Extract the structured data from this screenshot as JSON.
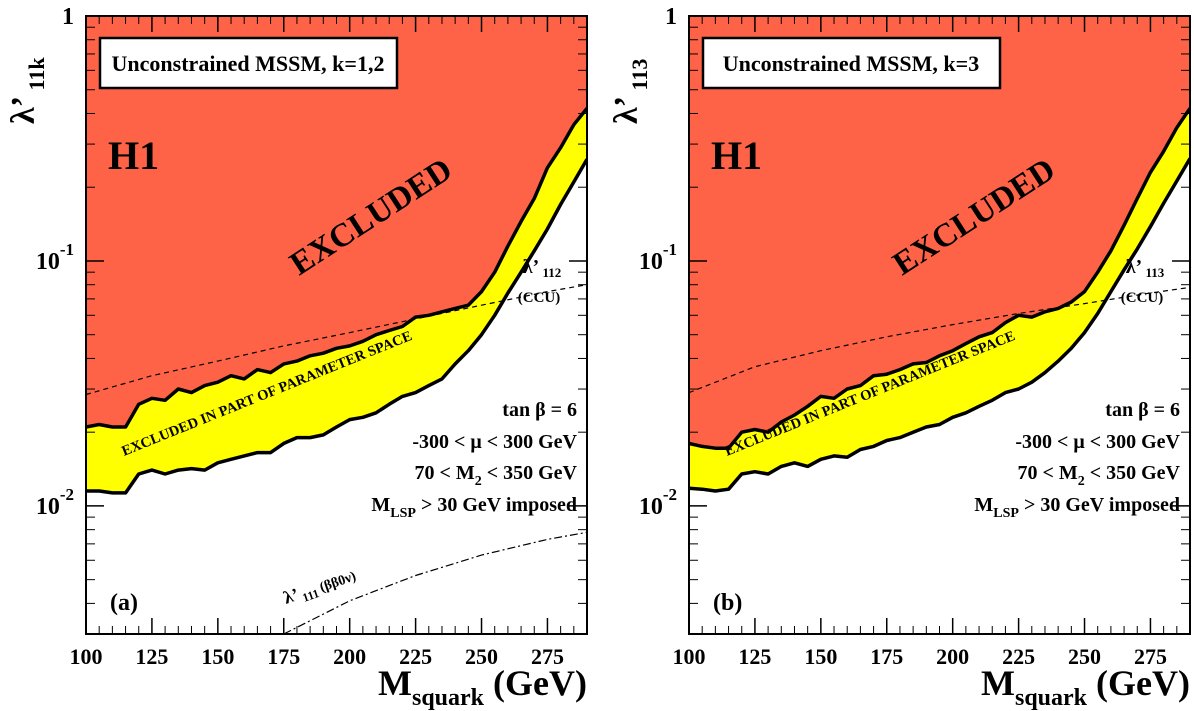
{
  "colors": {
    "excluded": "#ff6347",
    "partial": "#ffff00",
    "outline": "#000000",
    "background": "#ffffff"
  },
  "chart_data": [
    {
      "type": "area",
      "panel_label": "(a)",
      "title": "Unconstrained MSSM, k=1,2",
      "ylabel_main": "λ’",
      "ylabel_sub": "11k",
      "xlabel_main": "M",
      "xlabel_sub": "squark",
      "xlabel_unit": "(GeV)",
      "xlim": [
        100,
        290
      ],
      "ylim": [
        0.003,
        1
      ],
      "yscale": "log",
      "xticks": [
        100,
        125,
        150,
        175,
        200,
        225,
        250,
        275
      ],
      "yticks": [
        {
          "base": "1",
          "exp": "",
          "value": 1
        },
        {
          "base": "10",
          "exp": "-1",
          "value": 0.1
        },
        {
          "base": "10",
          "exp": "-2",
          "value": 0.01
        }
      ],
      "experiment_label": "H1",
      "excluded_label": "EXCLUDED",
      "partial_label": "EXCLUDED IN PART OF PARAMETER SPACE",
      "params": [
        "tan β = 6",
        "-300 < μ < 300 GeV",
        "70 < M₂ < 350 GeV",
        "M_LSP > 30 GeV imposed"
      ],
      "excluded_boundary": [
        {
          "x": 100,
          "y": 0.021
        },
        {
          "x": 105,
          "y": 0.0215
        },
        {
          "x": 110,
          "y": 0.021
        },
        {
          "x": 115,
          "y": 0.021
        },
        {
          "x": 120,
          "y": 0.026
        },
        {
          "x": 125,
          "y": 0.0275
        },
        {
          "x": 130,
          "y": 0.027
        },
        {
          "x": 135,
          "y": 0.03
        },
        {
          "x": 140,
          "y": 0.029
        },
        {
          "x": 145,
          "y": 0.031
        },
        {
          "x": 150,
          "y": 0.032
        },
        {
          "x": 155,
          "y": 0.034
        },
        {
          "x": 160,
          "y": 0.033
        },
        {
          "x": 165,
          "y": 0.036
        },
        {
          "x": 170,
          "y": 0.035
        },
        {
          "x": 175,
          "y": 0.038
        },
        {
          "x": 180,
          "y": 0.039
        },
        {
          "x": 185,
          "y": 0.041
        },
        {
          "x": 190,
          "y": 0.042
        },
        {
          "x": 195,
          "y": 0.044
        },
        {
          "x": 200,
          "y": 0.045
        },
        {
          "x": 205,
          "y": 0.047
        },
        {
          "x": 210,
          "y": 0.05
        },
        {
          "x": 215,
          "y": 0.052
        },
        {
          "x": 220,
          "y": 0.054
        },
        {
          "x": 225,
          "y": 0.059
        },
        {
          "x": 230,
          "y": 0.06
        },
        {
          "x": 235,
          "y": 0.062
        },
        {
          "x": 240,
          "y": 0.064
        },
        {
          "x": 245,
          "y": 0.066
        },
        {
          "x": 250,
          "y": 0.075
        },
        {
          "x": 255,
          "y": 0.09
        },
        {
          "x": 260,
          "y": 0.115
        },
        {
          "x": 265,
          "y": 0.145
        },
        {
          "x": 270,
          "y": 0.18
        },
        {
          "x": 275,
          "y": 0.24
        },
        {
          "x": 280,
          "y": 0.29
        },
        {
          "x": 285,
          "y": 0.36
        },
        {
          "x": 290,
          "y": 0.42
        }
      ],
      "partial_boundary": [
        {
          "x": 100,
          "y": 0.0115
        },
        {
          "x": 105,
          "y": 0.0115
        },
        {
          "x": 110,
          "y": 0.0113
        },
        {
          "x": 115,
          "y": 0.0113
        },
        {
          "x": 120,
          "y": 0.0135
        },
        {
          "x": 125,
          "y": 0.014
        },
        {
          "x": 130,
          "y": 0.0135
        },
        {
          "x": 135,
          "y": 0.014
        },
        {
          "x": 140,
          "y": 0.0142
        },
        {
          "x": 145,
          "y": 0.014
        },
        {
          "x": 150,
          "y": 0.015
        },
        {
          "x": 155,
          "y": 0.0155
        },
        {
          "x": 160,
          "y": 0.016
        },
        {
          "x": 165,
          "y": 0.0165
        },
        {
          "x": 170,
          "y": 0.0165
        },
        {
          "x": 175,
          "y": 0.018
        },
        {
          "x": 180,
          "y": 0.019
        },
        {
          "x": 185,
          "y": 0.019
        },
        {
          "x": 190,
          "y": 0.0195
        },
        {
          "x": 195,
          "y": 0.021
        },
        {
          "x": 200,
          "y": 0.0225
        },
        {
          "x": 205,
          "y": 0.023
        },
        {
          "x": 210,
          "y": 0.024
        },
        {
          "x": 215,
          "y": 0.026
        },
        {
          "x": 220,
          "y": 0.028
        },
        {
          "x": 225,
          "y": 0.029
        },
        {
          "x": 230,
          "y": 0.031
        },
        {
          "x": 235,
          "y": 0.033
        },
        {
          "x": 240,
          "y": 0.038
        },
        {
          "x": 245,
          "y": 0.043
        },
        {
          "x": 250,
          "y": 0.05
        },
        {
          "x": 255,
          "y": 0.06
        },
        {
          "x": 260,
          "y": 0.074
        },
        {
          "x": 265,
          "y": 0.09
        },
        {
          "x": 270,
          "y": 0.11
        },
        {
          "x": 275,
          "y": 0.135
        },
        {
          "x": 280,
          "y": 0.17
        },
        {
          "x": 285,
          "y": 0.21
        },
        {
          "x": 290,
          "y": 0.26
        }
      ],
      "ccu_curve": {
        "label_main": "λ’",
        "label_sub": "112",
        "label_extra": "(CCU)",
        "points": [
          {
            "x": 100,
            "y": 0.0285
          },
          {
            "x": 125,
            "y": 0.034
          },
          {
            "x": 150,
            "y": 0.039
          },
          {
            "x": 175,
            "y": 0.045
          },
          {
            "x": 200,
            "y": 0.051
          },
          {
            "x": 225,
            "y": 0.058
          },
          {
            "x": 250,
            "y": 0.066
          },
          {
            "x": 275,
            "y": 0.075
          },
          {
            "x": 290,
            "y": 0.08
          }
        ]
      },
      "bb0v_curve": {
        "label_main": "λ’",
        "label_sub": "111",
        "label_extra": "(ββ0ν)",
        "points": [
          {
            "x": 175,
            "y": 0.003
          },
          {
            "x": 200,
            "y": 0.0041
          },
          {
            "x": 225,
            "y": 0.0052
          },
          {
            "x": 250,
            "y": 0.0063
          },
          {
            "x": 275,
            "y": 0.0073
          },
          {
            "x": 290,
            "y": 0.0078
          }
        ]
      }
    },
    {
      "type": "area",
      "panel_label": "(b)",
      "title": "Unconstrained MSSM, k=3",
      "ylabel_main": "λ’",
      "ylabel_sub": "113",
      "xlabel_main": "M",
      "xlabel_sub": "squark",
      "xlabel_unit": "(GeV)",
      "xlim": [
        100,
        290
      ],
      "ylim": [
        0.003,
        1
      ],
      "yscale": "log",
      "xticks": [
        100,
        125,
        150,
        175,
        200,
        225,
        250,
        275
      ],
      "yticks": [
        {
          "base": "1",
          "exp": "",
          "value": 1
        },
        {
          "base": "10",
          "exp": "-1",
          "value": 0.1
        },
        {
          "base": "10",
          "exp": "-2",
          "value": 0.01
        }
      ],
      "experiment_label": "H1",
      "excluded_label": "EXCLUDED",
      "partial_label": "EXCLUDED IN PART OF PARAMETER SPACE",
      "params": [
        "tan β = 6",
        "-300 < μ < 300 GeV",
        "70 < M₂ < 350 GeV",
        "M_LSP > 30 GeV imposed"
      ],
      "excluded_boundary": [
        {
          "x": 100,
          "y": 0.018
        },
        {
          "x": 105,
          "y": 0.0175
        },
        {
          "x": 110,
          "y": 0.0172
        },
        {
          "x": 115,
          "y": 0.0172
        },
        {
          "x": 120,
          "y": 0.02
        },
        {
          "x": 125,
          "y": 0.0205
        },
        {
          "x": 130,
          "y": 0.02
        },
        {
          "x": 135,
          "y": 0.022
        },
        {
          "x": 140,
          "y": 0.0235
        },
        {
          "x": 145,
          "y": 0.0255
        },
        {
          "x": 150,
          "y": 0.028
        },
        {
          "x": 155,
          "y": 0.0275
        },
        {
          "x": 160,
          "y": 0.03
        },
        {
          "x": 165,
          "y": 0.031
        },
        {
          "x": 170,
          "y": 0.034
        },
        {
          "x": 175,
          "y": 0.0345
        },
        {
          "x": 180,
          "y": 0.036
        },
        {
          "x": 185,
          "y": 0.038
        },
        {
          "x": 190,
          "y": 0.0385
        },
        {
          "x": 195,
          "y": 0.041
        },
        {
          "x": 200,
          "y": 0.043
        },
        {
          "x": 205,
          "y": 0.046
        },
        {
          "x": 210,
          "y": 0.049
        },
        {
          "x": 215,
          "y": 0.051
        },
        {
          "x": 220,
          "y": 0.056
        },
        {
          "x": 225,
          "y": 0.06
        },
        {
          "x": 230,
          "y": 0.059
        },
        {
          "x": 235,
          "y": 0.062
        },
        {
          "x": 240,
          "y": 0.064
        },
        {
          "x": 245,
          "y": 0.068
        },
        {
          "x": 250,
          "y": 0.075
        },
        {
          "x": 255,
          "y": 0.09
        },
        {
          "x": 260,
          "y": 0.11
        },
        {
          "x": 265,
          "y": 0.14
        },
        {
          "x": 270,
          "y": 0.18
        },
        {
          "x": 275,
          "y": 0.23
        },
        {
          "x": 280,
          "y": 0.28
        },
        {
          "x": 285,
          "y": 0.35
        },
        {
          "x": 290,
          "y": 0.42
        }
      ],
      "partial_boundary": [
        {
          "x": 100,
          "y": 0.0118
        },
        {
          "x": 105,
          "y": 0.0117
        },
        {
          "x": 110,
          "y": 0.0115
        },
        {
          "x": 115,
          "y": 0.0117
        },
        {
          "x": 120,
          "y": 0.0135
        },
        {
          "x": 125,
          "y": 0.0138
        },
        {
          "x": 130,
          "y": 0.0135
        },
        {
          "x": 135,
          "y": 0.0145
        },
        {
          "x": 140,
          "y": 0.015
        },
        {
          "x": 145,
          "y": 0.0145
        },
        {
          "x": 150,
          "y": 0.0155
        },
        {
          "x": 155,
          "y": 0.016
        },
        {
          "x": 160,
          "y": 0.0158
        },
        {
          "x": 165,
          "y": 0.017
        },
        {
          "x": 170,
          "y": 0.0175
        },
        {
          "x": 175,
          "y": 0.0185
        },
        {
          "x": 180,
          "y": 0.019
        },
        {
          "x": 185,
          "y": 0.02
        },
        {
          "x": 190,
          "y": 0.021
        },
        {
          "x": 195,
          "y": 0.0215
        },
        {
          "x": 200,
          "y": 0.023
        },
        {
          "x": 205,
          "y": 0.024
        },
        {
          "x": 210,
          "y": 0.0255
        },
        {
          "x": 215,
          "y": 0.027
        },
        {
          "x": 220,
          "y": 0.029
        },
        {
          "x": 225,
          "y": 0.03
        },
        {
          "x": 230,
          "y": 0.032
        },
        {
          "x": 235,
          "y": 0.035
        },
        {
          "x": 240,
          "y": 0.039
        },
        {
          "x": 245,
          "y": 0.044
        },
        {
          "x": 250,
          "y": 0.051
        },
        {
          "x": 255,
          "y": 0.061
        },
        {
          "x": 260,
          "y": 0.075
        },
        {
          "x": 265,
          "y": 0.092
        },
        {
          "x": 270,
          "y": 0.112
        },
        {
          "x": 275,
          "y": 0.138
        },
        {
          "x": 280,
          "y": 0.172
        },
        {
          "x": 285,
          "y": 0.212
        },
        {
          "x": 290,
          "y": 0.262
        }
      ],
      "ccu_curve": {
        "label_main": "λ’",
        "label_sub": "113",
        "label_extra": "(CCU)",
        "points": [
          {
            "x": 100,
            "y": 0.029
          },
          {
            "x": 125,
            "y": 0.037
          },
          {
            "x": 150,
            "y": 0.043
          },
          {
            "x": 175,
            "y": 0.049
          },
          {
            "x": 200,
            "y": 0.055
          },
          {
            "x": 225,
            "y": 0.061
          },
          {
            "x": 250,
            "y": 0.067
          },
          {
            "x": 275,
            "y": 0.074
          },
          {
            "x": 290,
            "y": 0.078
          }
        ]
      }
    }
  ]
}
